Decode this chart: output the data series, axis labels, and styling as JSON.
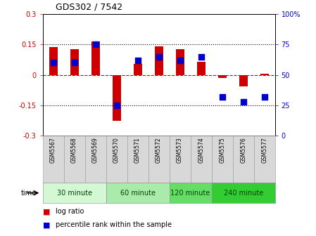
{
  "title": "GDS302 / 7542",
  "samples": [
    "GSM5567",
    "GSM5568",
    "GSM5569",
    "GSM5570",
    "GSM5571",
    "GSM5572",
    "GSM5573",
    "GSM5574",
    "GSM5575",
    "GSM5576",
    "GSM5577"
  ],
  "log_ratio": [
    0.137,
    0.127,
    0.165,
    -0.225,
    0.055,
    0.14,
    0.127,
    0.065,
    -0.015,
    -0.055,
    0.005
  ],
  "percentile": [
    60,
    60,
    75,
    25,
    62,
    65,
    62,
    65,
    32,
    28,
    32
  ],
  "ylim_left": [
    -0.3,
    0.3
  ],
  "ylim_right": [
    0,
    100
  ],
  "yticks_left": [
    -0.3,
    -0.15,
    0,
    0.15,
    0.3
  ],
  "yticks_right": [
    0,
    25,
    50,
    75,
    100
  ],
  "ytick_labels_left": [
    "-0.3",
    "-0.15",
    "0",
    "0.15",
    "0.3"
  ],
  "ytick_labels_right": [
    "0",
    "25",
    "50",
    "75",
    "100%"
  ],
  "hlines_dotted": [
    0.15,
    -0.15
  ],
  "hline_zero_color": "#cc0000",
  "bar_color": "#cc0000",
  "dot_color": "#0000cc",
  "groups": [
    {
      "label": "30 minute",
      "start": 0,
      "end": 3,
      "color": "#d4f7d4"
    },
    {
      "label": "60 minute",
      "start": 3,
      "end": 6,
      "color": "#aaeaaa"
    },
    {
      "label": "120 minute",
      "start": 6,
      "end": 8,
      "color": "#66dd66"
    },
    {
      "label": "240 minute",
      "start": 8,
      "end": 11,
      "color": "#33cc33"
    }
  ],
  "time_label": "time",
  "legend_bar_label": "log ratio",
  "legend_dot_label": "percentile rank within the sample",
  "bar_width": 0.4,
  "dot_size": 28
}
